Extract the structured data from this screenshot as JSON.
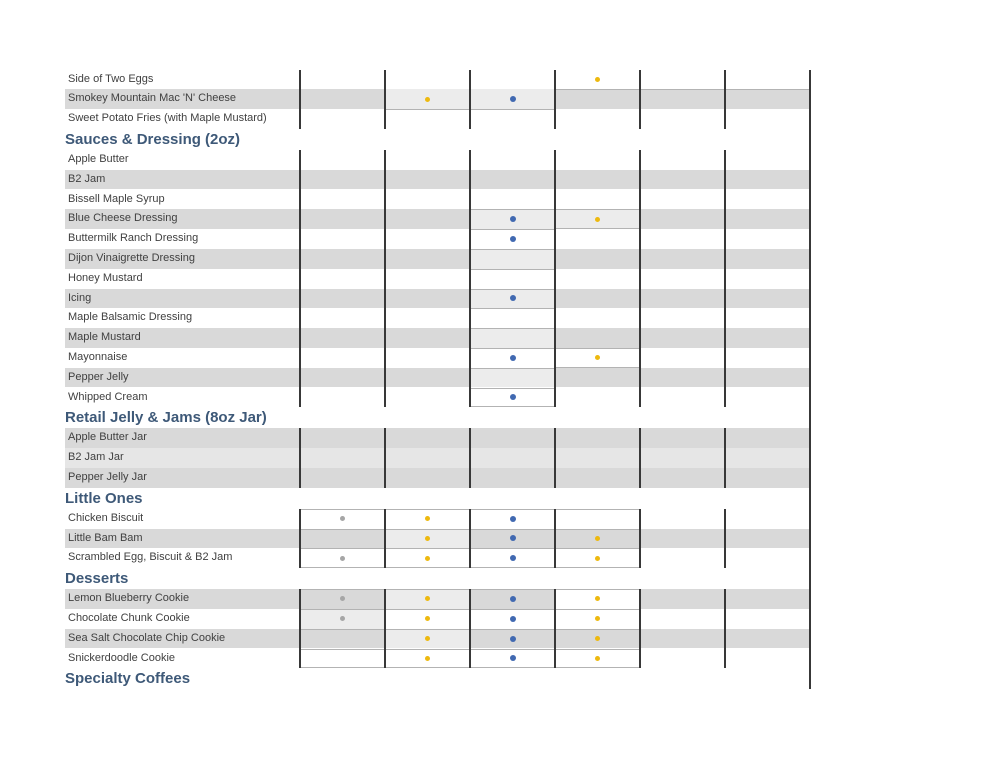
{
  "colors": {
    "band_gray": "#d9d9d9",
    "band_mid": "#e6e6e6",
    "cell_light": "#ececec",
    "cell_white": "#ffffff",
    "divider_dark": "#383838",
    "border_thin": "#b3b3b3",
    "label_text": "#404040",
    "header_text": "#3e5978",
    "dot_yellow": "#edb90f",
    "dot_blue": "#4169b1",
    "dot_gray": "#a6a6a6"
  },
  "table": {
    "column_count": 6,
    "items": [
      {
        "type": "row",
        "label": "Side of Two Eggs",
        "band": "white",
        "dots": {
          "4": "yellow"
        }
      },
      {
        "type": "row",
        "label": "Smokey Mountain Mac 'N' Cheese",
        "band": "gray",
        "dots": {
          "2": "yellow",
          "3": "blue"
        },
        "fills": {
          "2": "light",
          "3": "light"
        }
      },
      {
        "type": "row",
        "label": "Sweet Potato Fries (with Maple Mustard)",
        "band": "white"
      },
      {
        "type": "header",
        "label": "Sauces & Dressing (2oz)"
      },
      {
        "type": "row",
        "label": "Apple Butter",
        "band": "white"
      },
      {
        "type": "row",
        "label": "B2 Jam",
        "band": "gray"
      },
      {
        "type": "row",
        "label": "Bissell Maple Syrup",
        "band": "white"
      },
      {
        "type": "row",
        "label": "Blue Cheese Dressing",
        "band": "gray",
        "dots": {
          "3": "blue",
          "4": "yellow"
        },
        "fills": {
          "3": "light",
          "4": "light"
        }
      },
      {
        "type": "row",
        "label": "Buttermilk Ranch Dressing",
        "band": "white",
        "dots": {
          "3": "blue"
        }
      },
      {
        "type": "row",
        "label": "Dijon Vinaigrette Dressing",
        "band": "gray",
        "fills": {
          "3": "light"
        }
      },
      {
        "type": "row",
        "label": "Honey Mustard",
        "band": "white"
      },
      {
        "type": "row",
        "label": "Icing",
        "band": "gray",
        "dots": {
          "3": "blue"
        },
        "fills": {
          "3": "light"
        }
      },
      {
        "type": "row",
        "label": "Maple Balsamic Dressing",
        "band": "white"
      },
      {
        "type": "row",
        "label": "Maple Mustard",
        "band": "gray",
        "fills": {
          "3": "light"
        }
      },
      {
        "type": "row",
        "label": "Mayonnaise",
        "band": "white",
        "dots": {
          "3": "blue",
          "4": "yellow"
        }
      },
      {
        "type": "row",
        "label": "Pepper Jelly",
        "band": "gray",
        "fills": {
          "3": "light"
        }
      },
      {
        "type": "row",
        "label": "Whipped Cream",
        "band": "white",
        "dots": {
          "3": "blue"
        }
      },
      {
        "type": "header",
        "label": "Retail Jelly & Jams (8oz Jar)"
      },
      {
        "type": "row",
        "label": "Apple Butter Jar",
        "band": "gray"
      },
      {
        "type": "row",
        "label": "B2 Jam Jar",
        "band": "mid"
      },
      {
        "type": "row",
        "label": "Pepper Jelly Jar",
        "band": "gray"
      },
      {
        "type": "header",
        "label": "Little Ones"
      },
      {
        "type": "row",
        "label": "Chicken Biscuit",
        "band": "white",
        "dots": {
          "1": "gray",
          "2": "yellow",
          "3": "blue"
        }
      },
      {
        "type": "row",
        "label": "Little Bam Bam",
        "band": "gray",
        "dots": {
          "2": "yellow",
          "3": "blue",
          "4": "yellow"
        },
        "fills": {
          "2": "light"
        }
      },
      {
        "type": "row",
        "label": "Scrambled Egg, Biscuit & B2 Jam",
        "band": "white",
        "dots": {
          "1": "gray",
          "2": "yellow",
          "3": "blue",
          "4": "yellow"
        }
      },
      {
        "type": "header",
        "label": "Desserts"
      },
      {
        "type": "row",
        "label": "Lemon Blueberry Cookie",
        "band": "gray",
        "dots": {
          "1": "gray",
          "2": "yellow",
          "3": "blue",
          "4": "yellow"
        },
        "fills": {
          "2": "light",
          "4": "white"
        }
      },
      {
        "type": "row",
        "label": "Chocolate Chunk Cookie",
        "band": "white",
        "dots": {
          "1": "gray",
          "2": "yellow",
          "3": "blue",
          "4": "yellow"
        },
        "fills": {
          "1": "light"
        }
      },
      {
        "type": "row",
        "label": "Sea Salt Chocolate Chip Cookie",
        "band": "gray",
        "dots": {
          "2": "yellow",
          "3": "blue",
          "4": "yellow"
        },
        "fills": {
          "2": "light"
        }
      },
      {
        "type": "row",
        "label": "Snickerdoodle Cookie",
        "band": "white",
        "dots": {
          "2": "yellow",
          "3": "blue",
          "4": "yellow"
        }
      },
      {
        "type": "header",
        "label": "Specialty Coffees"
      }
    ],
    "borders": [
      {
        "kind": "hline",
        "item": 1,
        "edge": "top",
        "col_start": 4,
        "col_end": 6
      },
      {
        "kind": "hline",
        "item": 1,
        "edge": "bottom",
        "col_start": 2,
        "col_end": 3
      },
      {
        "kind": "box",
        "first": 7,
        "last": 16,
        "col_start": 3,
        "col_end": 3,
        "dividers": true
      },
      {
        "kind": "box",
        "first": 7,
        "last": 7,
        "col_start": 4,
        "col_end": 4
      },
      {
        "kind": "box",
        "first": 14,
        "last": 14,
        "col_start": 4,
        "col_end": 4
      },
      {
        "kind": "box",
        "first": 22,
        "last": 24,
        "col_start": 1,
        "col_end": 4,
        "dividers": true
      },
      {
        "kind": "box",
        "first": 26,
        "last": 29,
        "col_start": 1,
        "col_end": 4,
        "dividers": true
      }
    ]
  }
}
